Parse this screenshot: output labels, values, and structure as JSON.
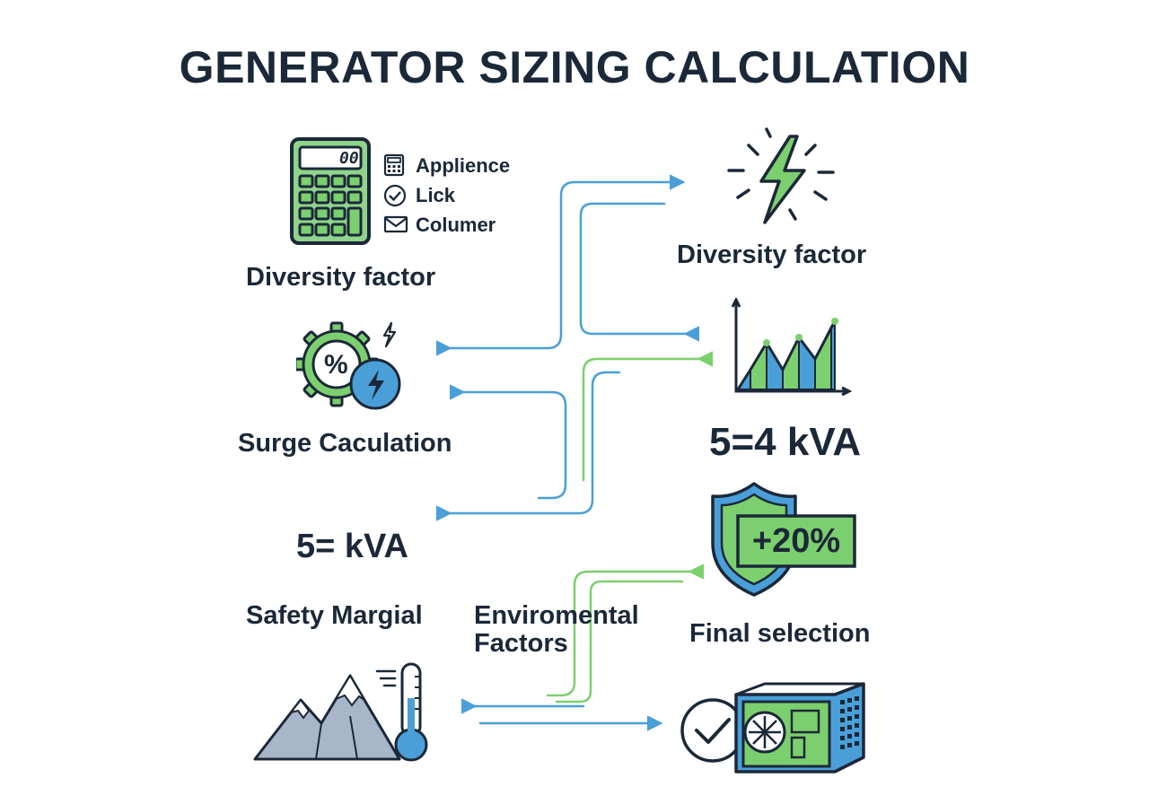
{
  "title": "GENERATOR SIZING CALCULATION",
  "left": {
    "calculator_display": "00",
    "menu_items": [
      {
        "label": "Applience",
        "icon": "calculator-icon"
      },
      {
        "label": "Lick",
        "icon": "check-circle-icon"
      },
      {
        "label": "Columer",
        "icon": "envelope-icon"
      }
    ],
    "label_1": "Diversity factor",
    "label_2": "Surge Caculation",
    "value": "5= kVA",
    "label_3": "Safety Margial",
    "label_4_line1": "Enviromental",
    "label_4_line2": "Factors"
  },
  "right": {
    "label_1": "Diversity factor",
    "value": "5=4 kVA",
    "badge": "+20%",
    "label_2": "Final selection"
  },
  "icons": [
    "calculator-icon",
    "lightning-icon",
    "gear-percent-icon",
    "bar-chart-icon",
    "shield-icon",
    "mountain-thermometer-icon",
    "generator-icon",
    "checkmark-icon"
  ],
  "colors": {
    "blue": "#4a9fd8",
    "green": "#7ccf6e",
    "navy": "#1b2838"
  }
}
